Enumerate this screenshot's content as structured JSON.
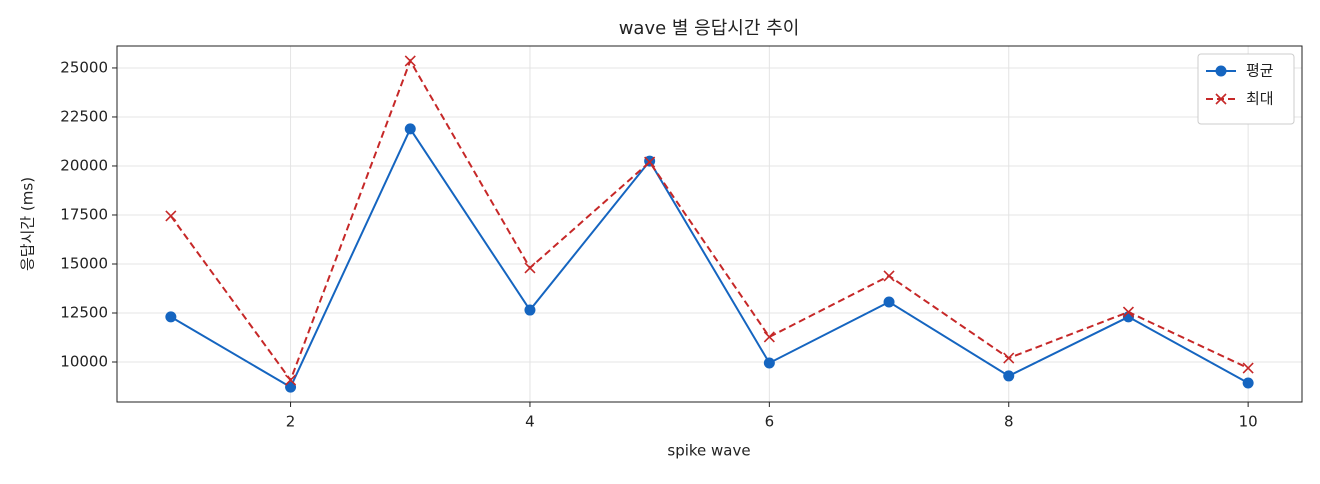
{
  "chart_data": {
    "type": "line",
    "title": "wave 별 응답시간 추이",
    "x_label": "spike wave",
    "y_label": "응답시간 (ms)",
    "x": [
      1,
      2,
      3,
      4,
      5,
      6,
      7,
      8,
      9,
      10
    ],
    "series": [
      {
        "name": "평균",
        "color": "#1565c0",
        "marker": "o",
        "linestyle": "solid",
        "values": [
          12300,
          8720,
          21890,
          12650,
          20250,
          9950,
          13060,
          9290,
          12300,
          8930
        ]
      },
      {
        "name": "최대",
        "color": "#c62828",
        "marker": "x",
        "linestyle": "dashed",
        "values": [
          17450,
          9080,
          25360,
          14800,
          20200,
          11280,
          14390,
          10200,
          12550,
          9690
        ]
      }
    ],
    "xlim": [
      0.55,
      10.45
    ],
    "ylim": [
      7960,
      26120
    ],
    "xticks": [
      2,
      4,
      6,
      8,
      10
    ],
    "yticks": [
      10000,
      12500,
      15000,
      17500,
      20000,
      22500,
      25000
    ],
    "grid": true,
    "legend": "upper right"
  }
}
